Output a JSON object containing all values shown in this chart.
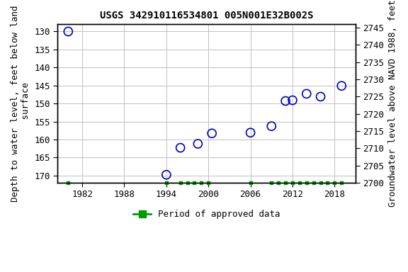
{
  "title": "USGS 342910116534801 005N001E32B002S",
  "ylabel_left": "Depth to water level, feet below land\n surface",
  "ylabel_right": "Groundwater level above NAVD 1988, feet",
  "xlim": [
    1978.5,
    2021
  ],
  "ylim_left": [
    128,
    172
  ],
  "ylim_right": [
    2700,
    2746
  ],
  "xticks": [
    1982,
    1988,
    1994,
    2000,
    2006,
    2012,
    2018
  ],
  "yticks_left": [
    130,
    135,
    140,
    145,
    150,
    155,
    160,
    165,
    170
  ],
  "yticks_right": [
    2700,
    2705,
    2710,
    2715,
    2720,
    2725,
    2730,
    2735,
    2740,
    2745
  ],
  "data_x": [
    1980,
    1994,
    1996,
    1998.5,
    2000.5,
    2006,
    2009,
    2011,
    2012,
    2014,
    2016,
    2019
  ],
  "data_y": [
    130,
    169.8,
    162.3,
    161.2,
    158.3,
    158.1,
    156.3,
    149.3,
    149.1,
    147.3,
    148.1,
    145.1
  ],
  "marker_color": "#0000bb",
  "marker_size": 5,
  "grid_color": "#c0c0c0",
  "bg_color": "#ffffff",
  "approved_x": [
    1980,
    1994,
    1996,
    1997,
    1998,
    1999,
    2000,
    2006,
    2009,
    2010,
    2011,
    2012,
    2013,
    2014,
    2015,
    2016,
    2017,
    2018,
    2019
  ],
  "legend_label": "Period of approved data",
  "legend_color": "#009900",
  "title_fontsize": 10,
  "axis_fontsize": 9,
  "tick_fontsize": 9
}
